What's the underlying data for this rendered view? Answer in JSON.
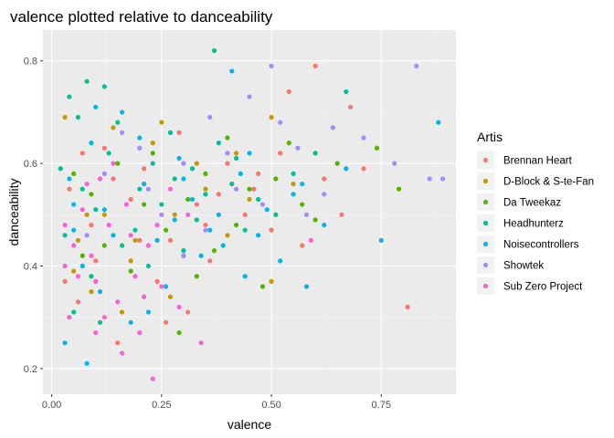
{
  "chart_data": {
    "type": "scatter",
    "title": "valence plotted relative to danceability",
    "xlabel": "valence",
    "ylabel": "danceability",
    "xlim": [
      -0.02,
      0.92
    ],
    "ylim": [
      0.15,
      0.86
    ],
    "x_ticks": [
      0.0,
      0.25,
      0.5,
      0.75
    ],
    "x_tick_labels": [
      "0.00",
      "0.25",
      "0.50",
      "0.75"
    ],
    "y_ticks": [
      0.2,
      0.4,
      0.6,
      0.8
    ],
    "y_tick_labels": [
      "0.2",
      "0.4",
      "0.6",
      "0.8"
    ],
    "grid": true,
    "legend_title": "Artis",
    "legend_position": "right",
    "series": [
      {
        "name": "Brennan Heart",
        "color": "#F8766D",
        "points": [
          [
            0.6,
            0.79
          ],
          [
            0.68,
            0.71
          ],
          [
            0.54,
            0.74
          ],
          [
            0.81,
            0.32
          ],
          [
            0.46,
            0.55
          ],
          [
            0.21,
            0.59
          ],
          [
            0.33,
            0.52
          ],
          [
            0.12,
            0.63
          ],
          [
            0.09,
            0.48
          ],
          [
            0.27,
            0.45
          ],
          [
            0.4,
            0.6
          ],
          [
            0.15,
            0.25
          ],
          [
            0.62,
            0.57
          ],
          [
            0.06,
            0.33
          ],
          [
            0.5,
            0.47
          ],
          [
            0.29,
            0.66
          ],
          [
            0.36,
            0.41
          ],
          [
            0.04,
            0.55
          ],
          [
            0.71,
            0.59
          ],
          [
            0.18,
            0.53
          ],
          [
            0.44,
            0.5
          ],
          [
            0.24,
            0.37
          ],
          [
            0.57,
            0.44
          ],
          [
            0.1,
            0.41
          ],
          [
            0.31,
            0.31
          ],
          [
            0.52,
            0.62
          ],
          [
            0.14,
            0.57
          ],
          [
            0.38,
            0.54
          ],
          [
            0.66,
            0.5
          ],
          [
            0.07,
            0.62
          ],
          [
            0.2,
            0.45
          ],
          [
            0.47,
            0.58
          ],
          [
            0.03,
            0.37
          ],
          [
            0.26,
            0.29
          ],
          [
            0.35,
            0.48
          ]
        ]
      },
      {
        "name": "D-Block & S-te-Fan",
        "color": "#C49A00",
        "points": [
          [
            0.03,
            0.69
          ],
          [
            0.5,
            0.69
          ],
          [
            0.25,
            0.68
          ],
          [
            0.19,
            0.45
          ],
          [
            0.42,
            0.62
          ],
          [
            0.11,
            0.57
          ],
          [
            0.3,
            0.42
          ],
          [
            0.08,
            0.5
          ],
          [
            0.35,
            0.55
          ],
          [
            0.16,
            0.31
          ],
          [
            0.5,
            0.37
          ],
          [
            0.23,
            0.64
          ],
          [
            0.05,
            0.39
          ],
          [
            0.28,
            0.5
          ],
          [
            0.14,
            0.67
          ],
          [
            0.4,
            0.46
          ],
          [
            0.21,
            0.56
          ],
          [
            0.09,
            0.35
          ],
          [
            0.45,
            0.53
          ],
          [
            0.33,
            0.6
          ],
          [
            0.06,
            0.45
          ],
          [
            0.27,
            0.34
          ],
          [
            0.18,
            0.41
          ],
          [
            0.55,
            0.56
          ],
          [
            0.12,
            0.5
          ]
        ]
      },
      {
        "name": "Da Tweekaz",
        "color": "#53B400",
        "points": [
          [
            0.74,
            0.63
          ],
          [
            0.48,
            0.36
          ],
          [
            0.29,
            0.27
          ],
          [
            0.57,
            0.52
          ],
          [
            0.35,
            0.58
          ],
          [
            0.12,
            0.44
          ],
          [
            0.42,
            0.48
          ],
          [
            0.23,
            0.62
          ],
          [
            0.65,
            0.6
          ],
          [
            0.09,
            0.54
          ],
          [
            0.31,
            0.53
          ],
          [
            0.51,
            0.57
          ],
          [
            0.18,
            0.39
          ],
          [
            0.4,
            0.65
          ],
          [
            0.05,
            0.58
          ],
          [
            0.26,
            0.47
          ],
          [
            0.6,
            0.49
          ],
          [
            0.15,
            0.6
          ],
          [
            0.37,
            0.43
          ],
          [
            0.79,
            0.55
          ],
          [
            0.21,
            0.52
          ],
          [
            0.45,
            0.55
          ],
          [
            0.07,
            0.42
          ],
          [
            0.33,
            0.38
          ],
          [
            0.54,
            0.64
          ]
        ]
      },
      {
        "name": "Headhunterz",
        "color": "#00C094",
        "points": [
          [
            0.37,
            0.82
          ],
          [
            0.08,
            0.76
          ],
          [
            0.12,
            0.75
          ],
          [
            0.04,
            0.73
          ],
          [
            0.67,
            0.74
          ],
          [
            0.06,
            0.69
          ],
          [
            0.15,
            0.68
          ],
          [
            0.23,
            0.6
          ],
          [
            0.2,
            0.55
          ],
          [
            0.1,
            0.51
          ],
          [
            0.28,
            0.57
          ],
          [
            0.33,
            0.49
          ],
          [
            0.42,
            0.61
          ],
          [
            0.47,
            0.53
          ],
          [
            0.02,
            0.59
          ],
          [
            0.16,
            0.44
          ],
          [
            0.25,
            0.52
          ],
          [
            0.38,
            0.64
          ],
          [
            0.09,
            0.38
          ],
          [
            0.44,
            0.47
          ],
          [
            0.05,
            0.31
          ],
          [
            0.3,
            0.43
          ],
          [
            0.55,
            0.58
          ],
          [
            0.13,
            0.62
          ],
          [
            0.35,
            0.54
          ],
          [
            0.19,
            0.47
          ],
          [
            0.51,
            0.5
          ],
          [
            0.07,
            0.55
          ],
          [
            0.27,
            0.66
          ],
          [
            0.41,
            0.56
          ],
          [
            0.11,
            0.29
          ],
          [
            0.22,
            0.4
          ],
          [
            0.6,
            0.62
          ],
          [
            0.03,
            0.46
          ],
          [
            0.32,
            0.59
          ]
        ]
      },
      {
        "name": "Noisecontrollers",
        "color": "#00B6EB",
        "points": [
          [
            0.88,
            0.68
          ],
          [
            0.41,
            0.78
          ],
          [
            0.67,
            0.59
          ],
          [
            0.75,
            0.45
          ],
          [
            0.08,
            0.21
          ],
          [
            0.03,
            0.25
          ],
          [
            0.18,
            0.29
          ],
          [
            0.26,
            0.36
          ],
          [
            0.34,
            0.42
          ],
          [
            0.05,
            0.47
          ],
          [
            0.12,
            0.51
          ],
          [
            0.21,
            0.56
          ],
          [
            0.29,
            0.61
          ],
          [
            0.38,
            0.5
          ],
          [
            0.47,
            0.46
          ],
          [
            0.55,
            0.54
          ],
          [
            0.62,
            0.48
          ],
          [
            0.09,
            0.64
          ],
          [
            0.16,
            0.7
          ],
          [
            0.24,
            0.45
          ],
          [
            0.32,
            0.53
          ],
          [
            0.43,
            0.58
          ],
          [
            0.52,
            0.41
          ],
          [
            0.58,
            0.36
          ],
          [
            0.07,
            0.4
          ],
          [
            0.14,
            0.46
          ],
          [
            0.2,
            0.65
          ],
          [
            0.36,
            0.47
          ],
          [
            0.45,
            0.62
          ],
          [
            0.04,
            0.57
          ],
          [
            0.11,
            0.35
          ],
          [
            0.28,
            0.49
          ],
          [
            0.39,
            0.44
          ],
          [
            0.49,
            0.51
          ],
          [
            0.57,
            0.56
          ],
          [
            0.1,
            0.71
          ],
          [
            0.22,
            0.31
          ],
          [
            0.3,
            0.57
          ],
          [
            0.44,
            0.38
          ],
          [
            0.05,
            0.52
          ]
        ]
      },
      {
        "name": "Showtek",
        "color": "#A58AFF",
        "points": [
          [
            0.83,
            0.79
          ],
          [
            0.5,
            0.79
          ],
          [
            0.45,
            0.73
          ],
          [
            0.36,
            0.69
          ],
          [
            0.64,
            0.67
          ],
          [
            0.2,
            0.63
          ],
          [
            0.78,
            0.6
          ],
          [
            0.86,
            0.57
          ],
          [
            0.3,
            0.6
          ],
          [
            0.16,
            0.66
          ],
          [
            0.42,
            0.55
          ],
          [
            0.56,
            0.63
          ],
          [
            0.25,
            0.5
          ],
          [
            0.62,
            0.54
          ],
          [
            0.12,
            0.58
          ],
          [
            0.35,
            0.47
          ],
          [
            0.48,
            0.52
          ],
          [
            0.71,
            0.65
          ],
          [
            0.22,
            0.55
          ],
          [
            0.4,
            0.62
          ],
          [
            0.08,
            0.46
          ],
          [
            0.58,
            0.5
          ],
          [
            0.3,
            0.42
          ],
          [
            0.89,
            0.57
          ],
          [
            0.52,
            0.68
          ]
        ]
      },
      {
        "name": "Sub Zero Project",
        "color": "#FB61D7",
        "points": [
          [
            0.23,
            0.18
          ],
          [
            0.59,
            0.45
          ],
          [
            0.34,
            0.25
          ],
          [
            0.03,
            0.4
          ],
          [
            0.1,
            0.27
          ],
          [
            0.15,
            0.33
          ],
          [
            0.05,
            0.44
          ],
          [
            0.13,
            0.48
          ],
          [
            0.19,
            0.38
          ],
          [
            0.07,
            0.51
          ],
          [
            0.22,
            0.44
          ],
          [
            0.27,
            0.55
          ],
          [
            0.11,
            0.57
          ],
          [
            0.17,
            0.52
          ],
          [
            0.04,
            0.3
          ],
          [
            0.2,
            0.27
          ],
          [
            0.25,
            0.36
          ],
          [
            0.09,
            0.42
          ],
          [
            0.14,
            0.6
          ],
          [
            0.29,
            0.32
          ],
          [
            0.06,
            0.38
          ],
          [
            0.18,
            0.46
          ],
          [
            0.12,
            0.3
          ],
          [
            0.31,
            0.5
          ],
          [
            0.08,
            0.56
          ],
          [
            0.16,
            0.23
          ],
          [
            0.24,
            0.48
          ],
          [
            0.03,
            0.48
          ],
          [
            0.1,
            0.37
          ],
          [
            0.21,
            0.34
          ]
        ]
      }
    ]
  }
}
